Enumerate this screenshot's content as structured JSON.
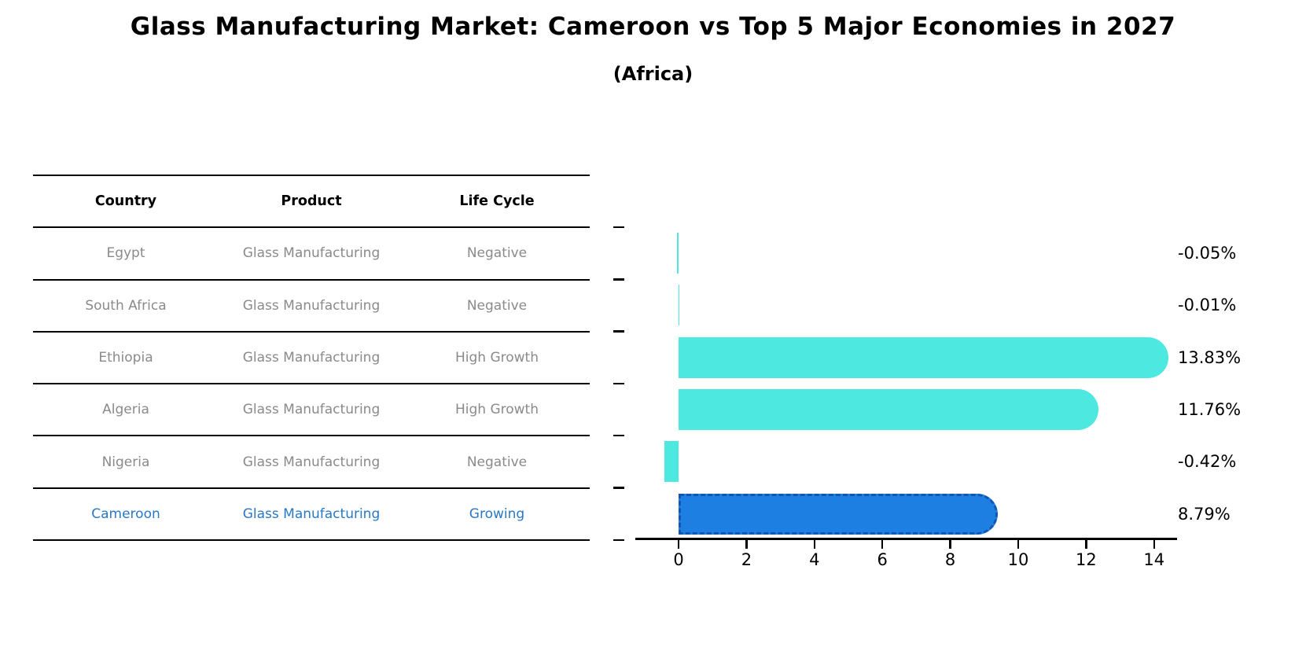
{
  "title": "Glass Manufacturing Market: Cameroon vs Top 5 Major Economies in 2027",
  "subtitle": "(Africa)",
  "table": {
    "headers": [
      "Country",
      "Product",
      "Life Cycle"
    ],
    "rows": [
      {
        "country": "Egypt",
        "product": "Glass Manufacturing",
        "life_cycle": "Negative",
        "highlight": false
      },
      {
        "country": "South Africa",
        "product": "Glass Manufacturing",
        "life_cycle": "Negative",
        "highlight": false
      },
      {
        "country": "Ethiopia",
        "product": "Glass Manufacturing",
        "life_cycle": "High Growth",
        "highlight": false
      },
      {
        "country": "Algeria",
        "product": "Glass Manufacturing",
        "life_cycle": "High Growth",
        "highlight": false
      },
      {
        "country": "Nigeria",
        "product": "Glass Manufacturing",
        "life_cycle": "Negative",
        "highlight": false
      },
      {
        "country": "Cameroon",
        "product": "Glass Manufacturing",
        "life_cycle": "Growing",
        "highlight": true
      }
    ]
  },
  "chart_data": {
    "type": "bar",
    "orientation": "horizontal",
    "title": "Glass Manufacturing Market: Cameroon vs Top 5 Major Economies in 2027",
    "subtitle": "(Africa)",
    "categories": [
      "Egypt",
      "South Africa",
      "Ethiopia",
      "Algeria",
      "Nigeria",
      "Cameroon"
    ],
    "values": [
      -0.05,
      -0.01,
      13.83,
      11.76,
      -0.42,
      8.79
    ],
    "value_labels": [
      "-0.05%",
      "-0.01%",
      "13.83%",
      "11.76%",
      "-0.42%",
      "8.79%"
    ],
    "unit": "%",
    "x_ticks": [
      0,
      2,
      4,
      6,
      8,
      10,
      12,
      14
    ],
    "xlim": [
      -1.25,
      14.65
    ],
    "grid": false,
    "legend": "none",
    "highlight_index": 5,
    "colors": {
      "default_bar": "#4DE8E0",
      "highlight_bar": "#1E7FE3",
      "highlight_edge": "#1355B0"
    }
  },
  "colors": {
    "background": "#FFFFFF",
    "table_header_text": "#000000",
    "table_body_text": "#8A8A8A",
    "highlight_text": "#2878C8",
    "axis": "#000000"
  }
}
